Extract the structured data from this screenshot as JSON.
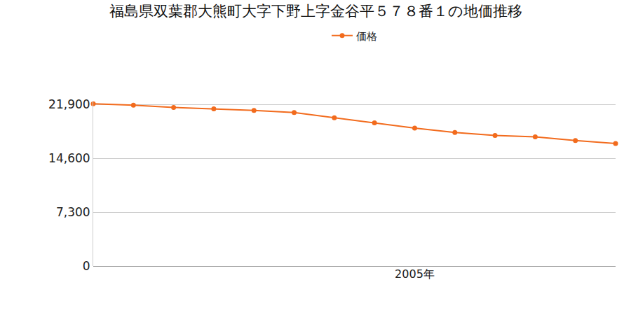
{
  "chart_data": {
    "type": "line",
    "title": "福島県双葉郡大熊町大字下野上字金谷平５７８番１の地価推移",
    "categories": [
      null,
      null,
      null,
      null,
      null,
      null,
      null,
      null,
      "2005年",
      null,
      null,
      null,
      null,
      null
    ],
    "series": [
      {
        "name": "価格",
        "color": "#f26b1d",
        "values": [
          22000,
          21800,
          21500,
          21300,
          21100,
          20800,
          20100,
          19400,
          18700,
          18100,
          17700,
          17500,
          17000,
          16600
        ]
      }
    ],
    "ylim": [
      0,
      22300
    ],
    "yticks": [
      0,
      {
        "value": 7300,
        "label": "7,300"
      },
      {
        "value": 14600,
        "label": "14,600"
      },
      {
        "value": 21900,
        "label": "21,900"
      }
    ],
    "grid": true,
    "legend": "top",
    "marker": "circle"
  }
}
